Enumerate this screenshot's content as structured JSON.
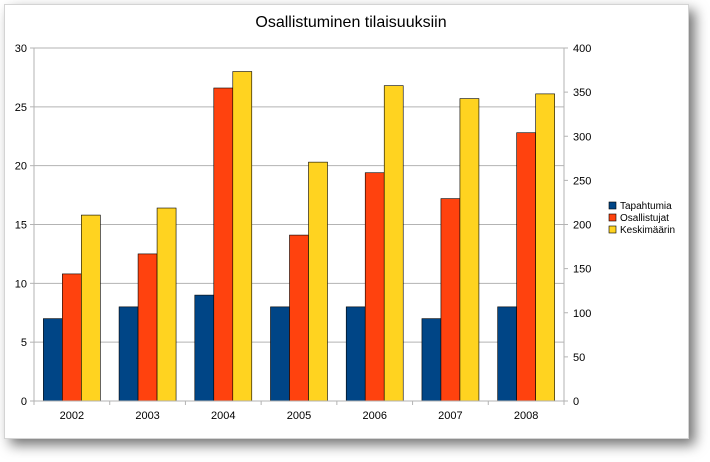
{
  "chart_data": {
    "type": "bar",
    "title": "Osallistuminen tilaisuuksiin",
    "xlabel": "",
    "ylabel": "",
    "categories": [
      "2002",
      "2003",
      "2004",
      "2005",
      "2006",
      "2007",
      "2008"
    ],
    "ylim": [
      0,
      30
    ],
    "y2lim": [
      0,
      400
    ],
    "yticks": [
      "0",
      "5",
      "10",
      "15",
      "20",
      "25",
      "30"
    ],
    "y2ticks": [
      "0",
      "50",
      "100",
      "150",
      "200",
      "250",
      "300",
      "350",
      "400"
    ],
    "grid": true,
    "legend_position": "right",
    "series": [
      {
        "name": "Tapahtumia",
        "color": "#004586",
        "values": [
          7,
          8,
          9,
          8,
          8,
          7,
          8
        ]
      },
      {
        "name": "Osallistujat",
        "color": "#ff420e",
        "values": [
          10.8,
          12.5,
          26.6,
          14.1,
          19.4,
          17.2,
          22.8
        ]
      },
      {
        "name": "Keskimäärin",
        "color": "#ffd320",
        "values": [
          15.8,
          16.4,
          28.0,
          20.3,
          26.8,
          25.7,
          26.1
        ]
      }
    ]
  }
}
